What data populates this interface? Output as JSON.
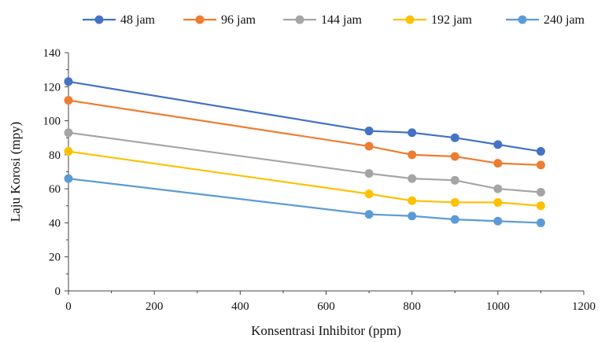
{
  "chart_data": {
    "type": "line",
    "xlabel": "Konsentrasi Inhibitor (ppm)",
    "ylabel": "Laju Korosi (mpy)",
    "x": [
      0,
      700,
      800,
      900,
      1000,
      1100
    ],
    "xlim": [
      0,
      1200
    ],
    "ylim": [
      0,
      140
    ],
    "xticks": [
      0,
      200,
      400,
      600,
      800,
      1000,
      1200
    ],
    "yticks": [
      0,
      20,
      40,
      60,
      80,
      100,
      120,
      140
    ],
    "grid": false,
    "legend_position": "top",
    "series": [
      {
        "name": "48 jam",
        "color": "#4472C4",
        "values": [
          123,
          94,
          93,
          90,
          86,
          82
        ]
      },
      {
        "name": "96 jam",
        "color": "#ED7D31",
        "values": [
          112,
          85,
          80,
          79,
          75,
          74
        ]
      },
      {
        "name": "144 jam",
        "color": "#A5A5A5",
        "values": [
          93,
          69,
          66,
          65,
          60,
          58
        ]
      },
      {
        "name": "192 jam",
        "color": "#FFC000",
        "values": [
          82,
          57,
          53,
          52,
          52,
          50
        ]
      },
      {
        "name": "240 jam",
        "color": "#5B9BD5",
        "values": [
          66,
          45,
          44,
          42,
          41,
          40
        ]
      }
    ]
  }
}
